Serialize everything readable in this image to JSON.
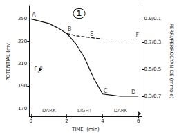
{
  "chart_data": {
    "type": "line",
    "title": "1",
    "xlabel": "TIME  (min)",
    "ylabel": "POTENTIAL (mv)",
    "y2label": "FERRI/FERROCYANIDE (mmole)",
    "color": "#111111",
    "grid": false,
    "xlim": [
      -0.1,
      6.2
    ],
    "xticks": [
      0,
      2,
      4,
      6
    ],
    "ylim": [
      163,
      262
    ],
    "yticks": [
      170,
      190,
      210,
      230,
      250
    ],
    "y2lim": [
      163,
      262
    ],
    "y2ticks": [
      {
        "value": 181,
        "label": "0.3/0.7"
      },
      {
        "value": 205,
        "label": "0.5/0.5"
      },
      {
        "value": 229,
        "label": "0.7/0.3"
      },
      {
        "value": 250,
        "label": "0.9/0.1"
      }
    ],
    "series": [
      {
        "x": [
          0,
          0.5,
          1.0,
          1.5,
          2.0,
          2.0,
          2.5,
          3.0,
          3.5,
          4.0,
          4.0,
          4.5,
          5.0,
          5.5,
          6.0
        ],
        "values": [
          250,
          248,
          246,
          242,
          237,
          237,
          228,
          215,
          197,
          183,
          183,
          182,
          181,
          181,
          181
        ],
        "color": "#111111",
        "line_style": "solid"
      },
      {
        "x": [
          2.0,
          2.5,
          3.0,
          3.5,
          4.0,
          4.5,
          5.0,
          5.5,
          6.0
        ],
        "values": [
          237,
          235,
          234,
          233,
          232,
          232,
          232,
          232,
          232
        ],
        "color": "#111111",
        "line_style": "dashed"
      }
    ],
    "annotations": [
      {
        "text": "A",
        "x": 0.05,
        "y": 251
      },
      {
        "text": "B",
        "x": 2.05,
        "y": 238
      },
      {
        "text": "C",
        "x": 4.05,
        "y": 183
      },
      {
        "text": "D",
        "x": 5.6,
        "y": 182
      },
      {
        "text": "E",
        "x": 3.3,
        "y": 234
      },
      {
        "text": "F",
        "x": 5.85,
        "y": 233
      },
      {
        "text": "E",
        "sub": "c",
        "sup": "0",
        "x": 0.18,
        "y": 205
      }
    ],
    "arrows": [
      {
        "x": [
          0.46,
          0.62
        ],
        "y": 205
      },
      {
        "x": [
          6.0,
          6.15
        ],
        "y": 165.5
      }
    ],
    "time_bar": {
      "y": 165.5,
      "x": [
        0,
        6
      ],
      "ticks": [
        0,
        2,
        4,
        6
      ]
    },
    "sections": [
      {
        "label": "DARK",
        "x": 1.0,
        "y": 166
      },
      {
        "label": "LIGHT",
        "x": 3.0,
        "y": 166
      },
      {
        "label": "DARK",
        "x": 5.0,
        "y": 166
      }
    ]
  }
}
